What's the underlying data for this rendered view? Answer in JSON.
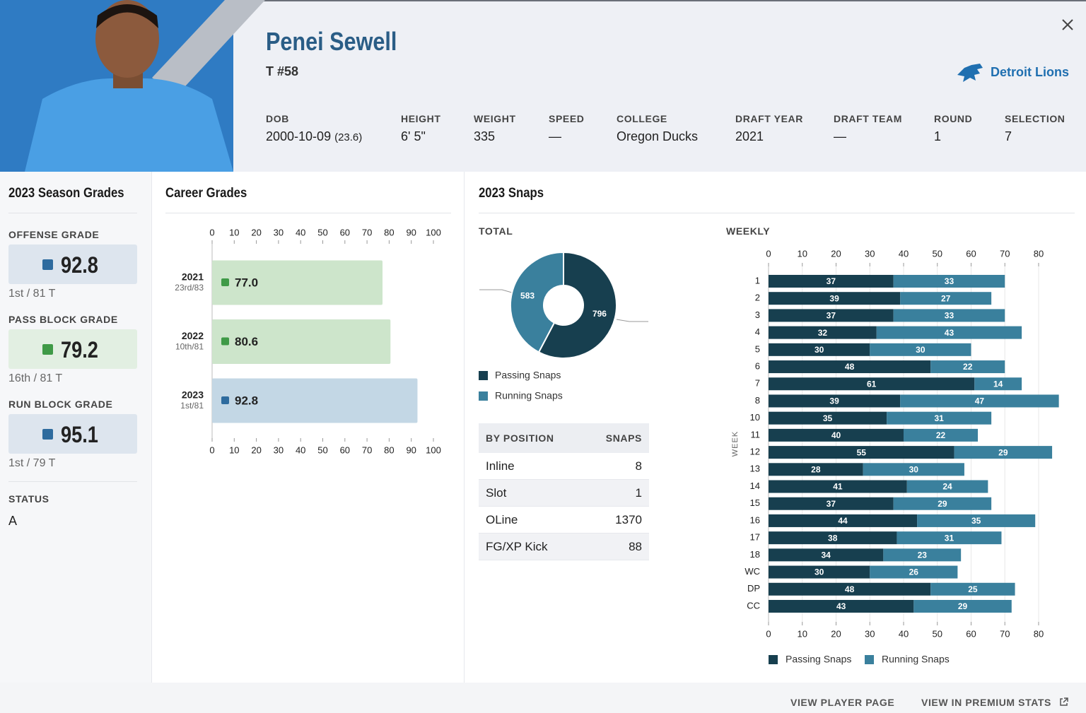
{
  "header": {
    "name": "Penei Sewell",
    "position_number": "T #58",
    "team": "Detroit Lions",
    "fields": [
      {
        "label": "DOB",
        "value": "2000-10-09",
        "note": "(23.6)"
      },
      {
        "label": "HEIGHT",
        "value": "6' 5\""
      },
      {
        "label": "WEIGHT",
        "value": "335"
      },
      {
        "label": "SPEED",
        "value": "—"
      },
      {
        "label": "COLLEGE",
        "value": "Oregon Ducks"
      },
      {
        "label": "DRAFT YEAR",
        "value": "2021"
      },
      {
        "label": "DRAFT TEAM",
        "value": "—"
      },
      {
        "label": "ROUND",
        "value": "1"
      },
      {
        "label": "SELECTION",
        "value": "7"
      }
    ]
  },
  "season_grades": {
    "title": "2023 Season Grades",
    "grades": [
      {
        "label": "OFFENSE GRADE",
        "grade": 92.8,
        "rank": "1st / 81 T",
        "color": "#2e6b9e",
        "background": "#dde5ee"
      },
      {
        "label": "PASS BLOCK GRADE",
        "grade": 79.2,
        "rank": "16th / 81 T",
        "color": "#3f9a47",
        "background": "#e2efe2"
      },
      {
        "label": "RUN BLOCK GRADE",
        "grade": 95.1,
        "rank": "1st / 79 T",
        "color": "#2e6b9e",
        "background": "#dde5ee"
      }
    ],
    "status_label": "STATUS",
    "status": "A"
  },
  "snaps_title": "2023 Snaps",
  "chart_data": [
    {
      "type": "bar",
      "orientation": "horizontal",
      "title": "Career Grades",
      "categories": [
        "2021",
        "2022",
        "2023"
      ],
      "category_notes": [
        "23rd/83",
        "10th/81",
        "1st/81"
      ],
      "values": [
        77,
        80.6,
        92.8
      ],
      "value_labels": [
        "77.0",
        "80.6",
        "92.8"
      ],
      "colors": [
        "#cde5cb",
        "#cde5cb",
        "#c3d7e5"
      ],
      "marker_colors": [
        "#3f9a47",
        "#3f9a47",
        "#2e6b9e"
      ],
      "xlim": [
        0,
        100
      ],
      "xticks": [
        0,
        10,
        20,
        30,
        40,
        50,
        60,
        70,
        80,
        90,
        100
      ],
      "grid": false
    },
    {
      "type": "pie",
      "donut": true,
      "subtitle": "TOTAL",
      "categories": [
        "Passing Snaps",
        "Running Snaps"
      ],
      "values": [
        796,
        583
      ],
      "colors": [
        "#173f4f",
        "#3a809d"
      ]
    },
    {
      "type": "bar",
      "orientation": "horizontal",
      "stacked": true,
      "subtitle": "WEEKLY",
      "y_label": "WEEK",
      "categories": [
        "1",
        "2",
        "3",
        "4",
        "5",
        "6",
        "7",
        "8",
        "10",
        "11",
        "12",
        "13",
        "14",
        "15",
        "16",
        "17",
        "18",
        "WC",
        "DP",
        "CC"
      ],
      "series": [
        {
          "name": "Passing Snaps",
          "color": "#173f4f",
          "values": [
            37,
            39,
            37,
            32,
            30,
            48,
            61,
            39,
            35,
            40,
            55,
            28,
            41,
            37,
            44,
            38,
            34,
            30,
            48,
            43
          ]
        },
        {
          "name": "Running Snaps",
          "color": "#3a809d",
          "values": [
            33,
            27,
            33,
            43,
            30,
            22,
            14,
            47,
            31,
            22,
            29,
            30,
            24,
            29,
            35,
            31,
            23,
            26,
            25,
            29
          ]
        }
      ],
      "xlim": [
        0,
        87
      ],
      "xticks": [
        0,
        10,
        20,
        30,
        40,
        50,
        60,
        70,
        80
      ],
      "grid": true
    }
  ],
  "position_table": {
    "columns": [
      "BY POSITION",
      "SNAPS"
    ],
    "rows": [
      [
        "Inline",
        8
      ],
      [
        "Slot",
        1
      ],
      [
        "OLine",
        1370
      ],
      [
        "FG/XP Kick",
        88
      ]
    ]
  },
  "footer": {
    "links": [
      "VIEW PLAYER PAGE",
      "VIEW IN PREMIUM STATS"
    ]
  }
}
